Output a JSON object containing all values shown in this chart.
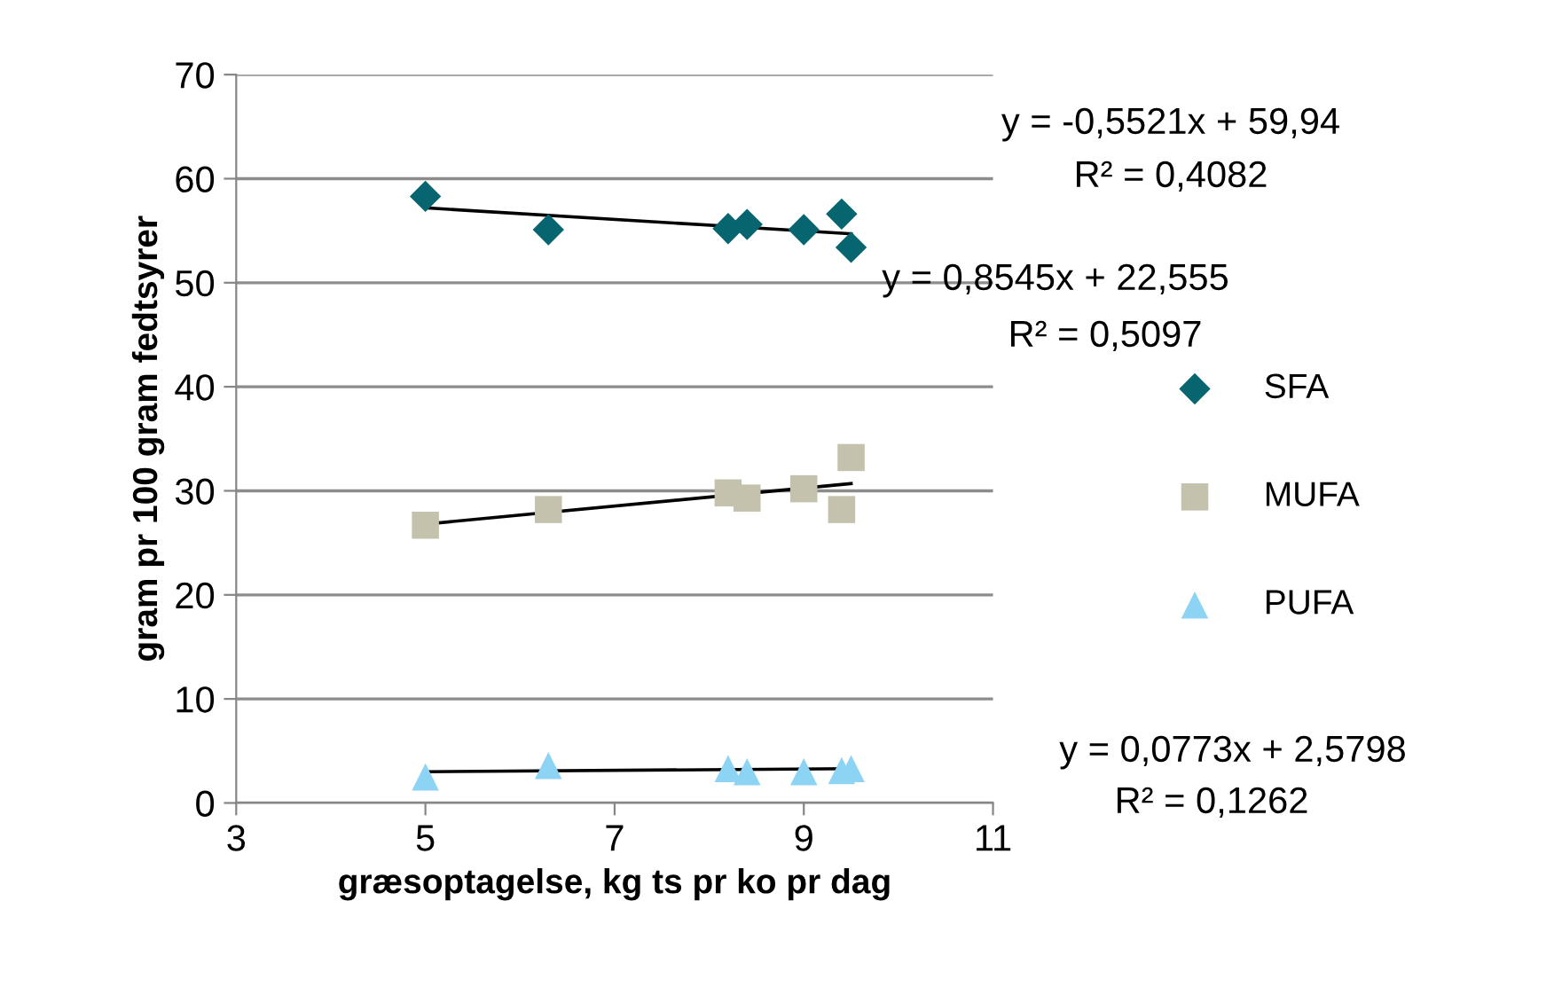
{
  "chart_data": {
    "type": "scatter",
    "xlabel": "græsoptagelse, kg ts pr ko pr dag",
    "ylabel": "gram pr 100 gram fedtsyrer",
    "xlim": [
      3,
      11
    ],
    "xticks": [
      3,
      5,
      7,
      9,
      11
    ],
    "ylim": [
      0,
      70
    ],
    "yticks": [
      0,
      10,
      20,
      30,
      40,
      50,
      60,
      70
    ],
    "grid": "y",
    "legend": "right",
    "series": [
      {
        "name": "SFA",
        "color": "#076570",
        "marker": "diamond",
        "x": [
          5,
          6.3,
          8.2,
          8.4,
          9.0,
          9.4,
          9.5
        ],
        "values": [
          58.3,
          55.1,
          55.2,
          55.6,
          55.1,
          56.6,
          53.4
        ]
      },
      {
        "name": "MUFA",
        "color": "#c4c2ad",
        "marker": "square",
        "x": [
          5,
          6.3,
          8.2,
          8.4,
          9.0,
          9.4,
          9.5
        ],
        "values": [
          26.7,
          28.2,
          29.8,
          29.3,
          30.2,
          28.2,
          33.2
        ]
      },
      {
        "name": "PUFA",
        "color": "#8dd3f3",
        "marker": "triangle",
        "x": [
          5,
          6.3,
          8.2,
          8.4,
          9.0,
          9.4,
          9.5
        ],
        "values": [
          2.5,
          3.6,
          3.3,
          3.0,
          3.0,
          3.1,
          3.3
        ]
      },
      {
        "type": "line",
        "color": "#000000",
        "x": [
          5,
          9.5
        ],
        "values": [
          57.2,
          54.7
        ]
      },
      {
        "type": "line",
        "color": "#000000",
        "x": [
          5,
          9.5
        ],
        "values": [
          26.8,
          30.7
        ]
      },
      {
        "type": "line",
        "color": "#000000",
        "x": [
          5,
          9.5
        ],
        "values": [
          3.0,
          3.3
        ]
      }
    ],
    "annotations": [
      "y = -0,5521x + 59,94",
      "R² = 0,4082",
      "y = 0,8545x + 22,555",
      "R² = 0,5097",
      "y = 0,0773x + 2,5798",
      "R² = 0,1262"
    ]
  }
}
